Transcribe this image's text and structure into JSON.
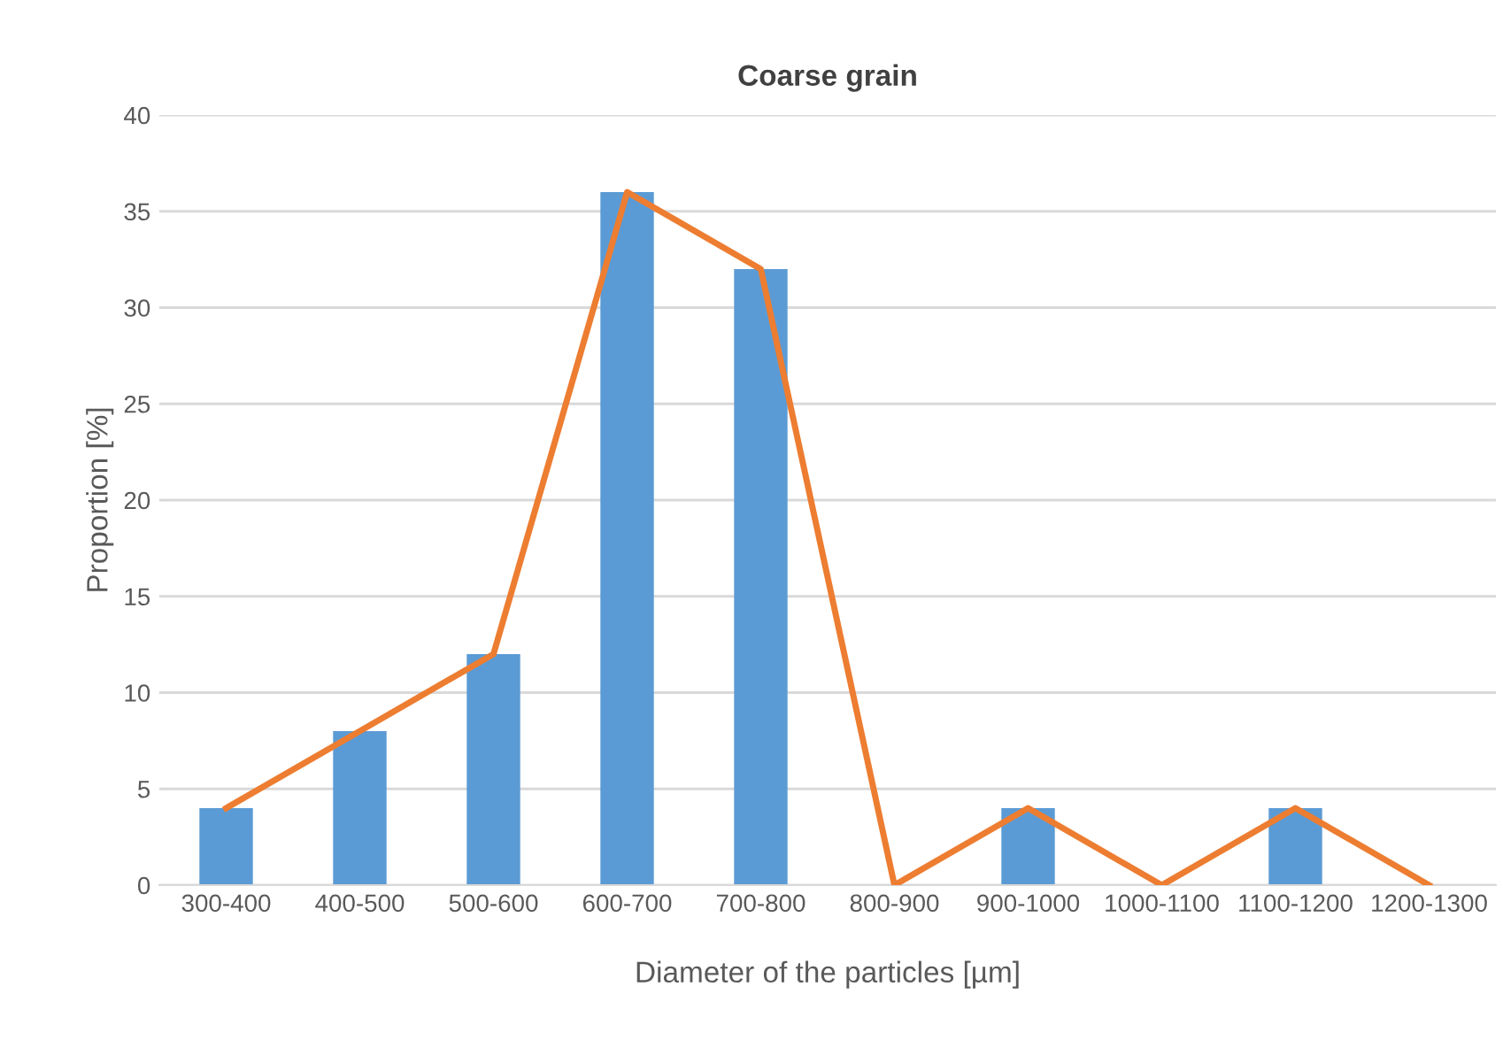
{
  "chart_data": {
    "type": "bar",
    "title": "Coarse grain",
    "xlabel": "Diameter of the particles [µm]",
    "ylabel": "Proportion [%]",
    "categories": [
      "300-400",
      "400-500",
      "500-600",
      "600-700",
      "700-800",
      "800-900",
      "900-1000",
      "1000-1100",
      "1100-1200",
      "1200-1300"
    ],
    "series": [
      {
        "color": "#5b9bd5",
        "values": [
          4,
          8,
          12,
          36,
          32,
          0,
          4,
          0,
          4,
          0
        ]
      },
      {
        "type": "line",
        "color": "#ed7d31",
        "values": [
          4,
          8,
          12,
          36,
          32,
          0,
          4,
          0,
          4,
          0
        ]
      }
    ],
    "ylim": [
      0,
      40
    ],
    "yticks": [
      0,
      5,
      10,
      15,
      20,
      25,
      30,
      35,
      40
    ],
    "grid": "y",
    "legend": false
  }
}
